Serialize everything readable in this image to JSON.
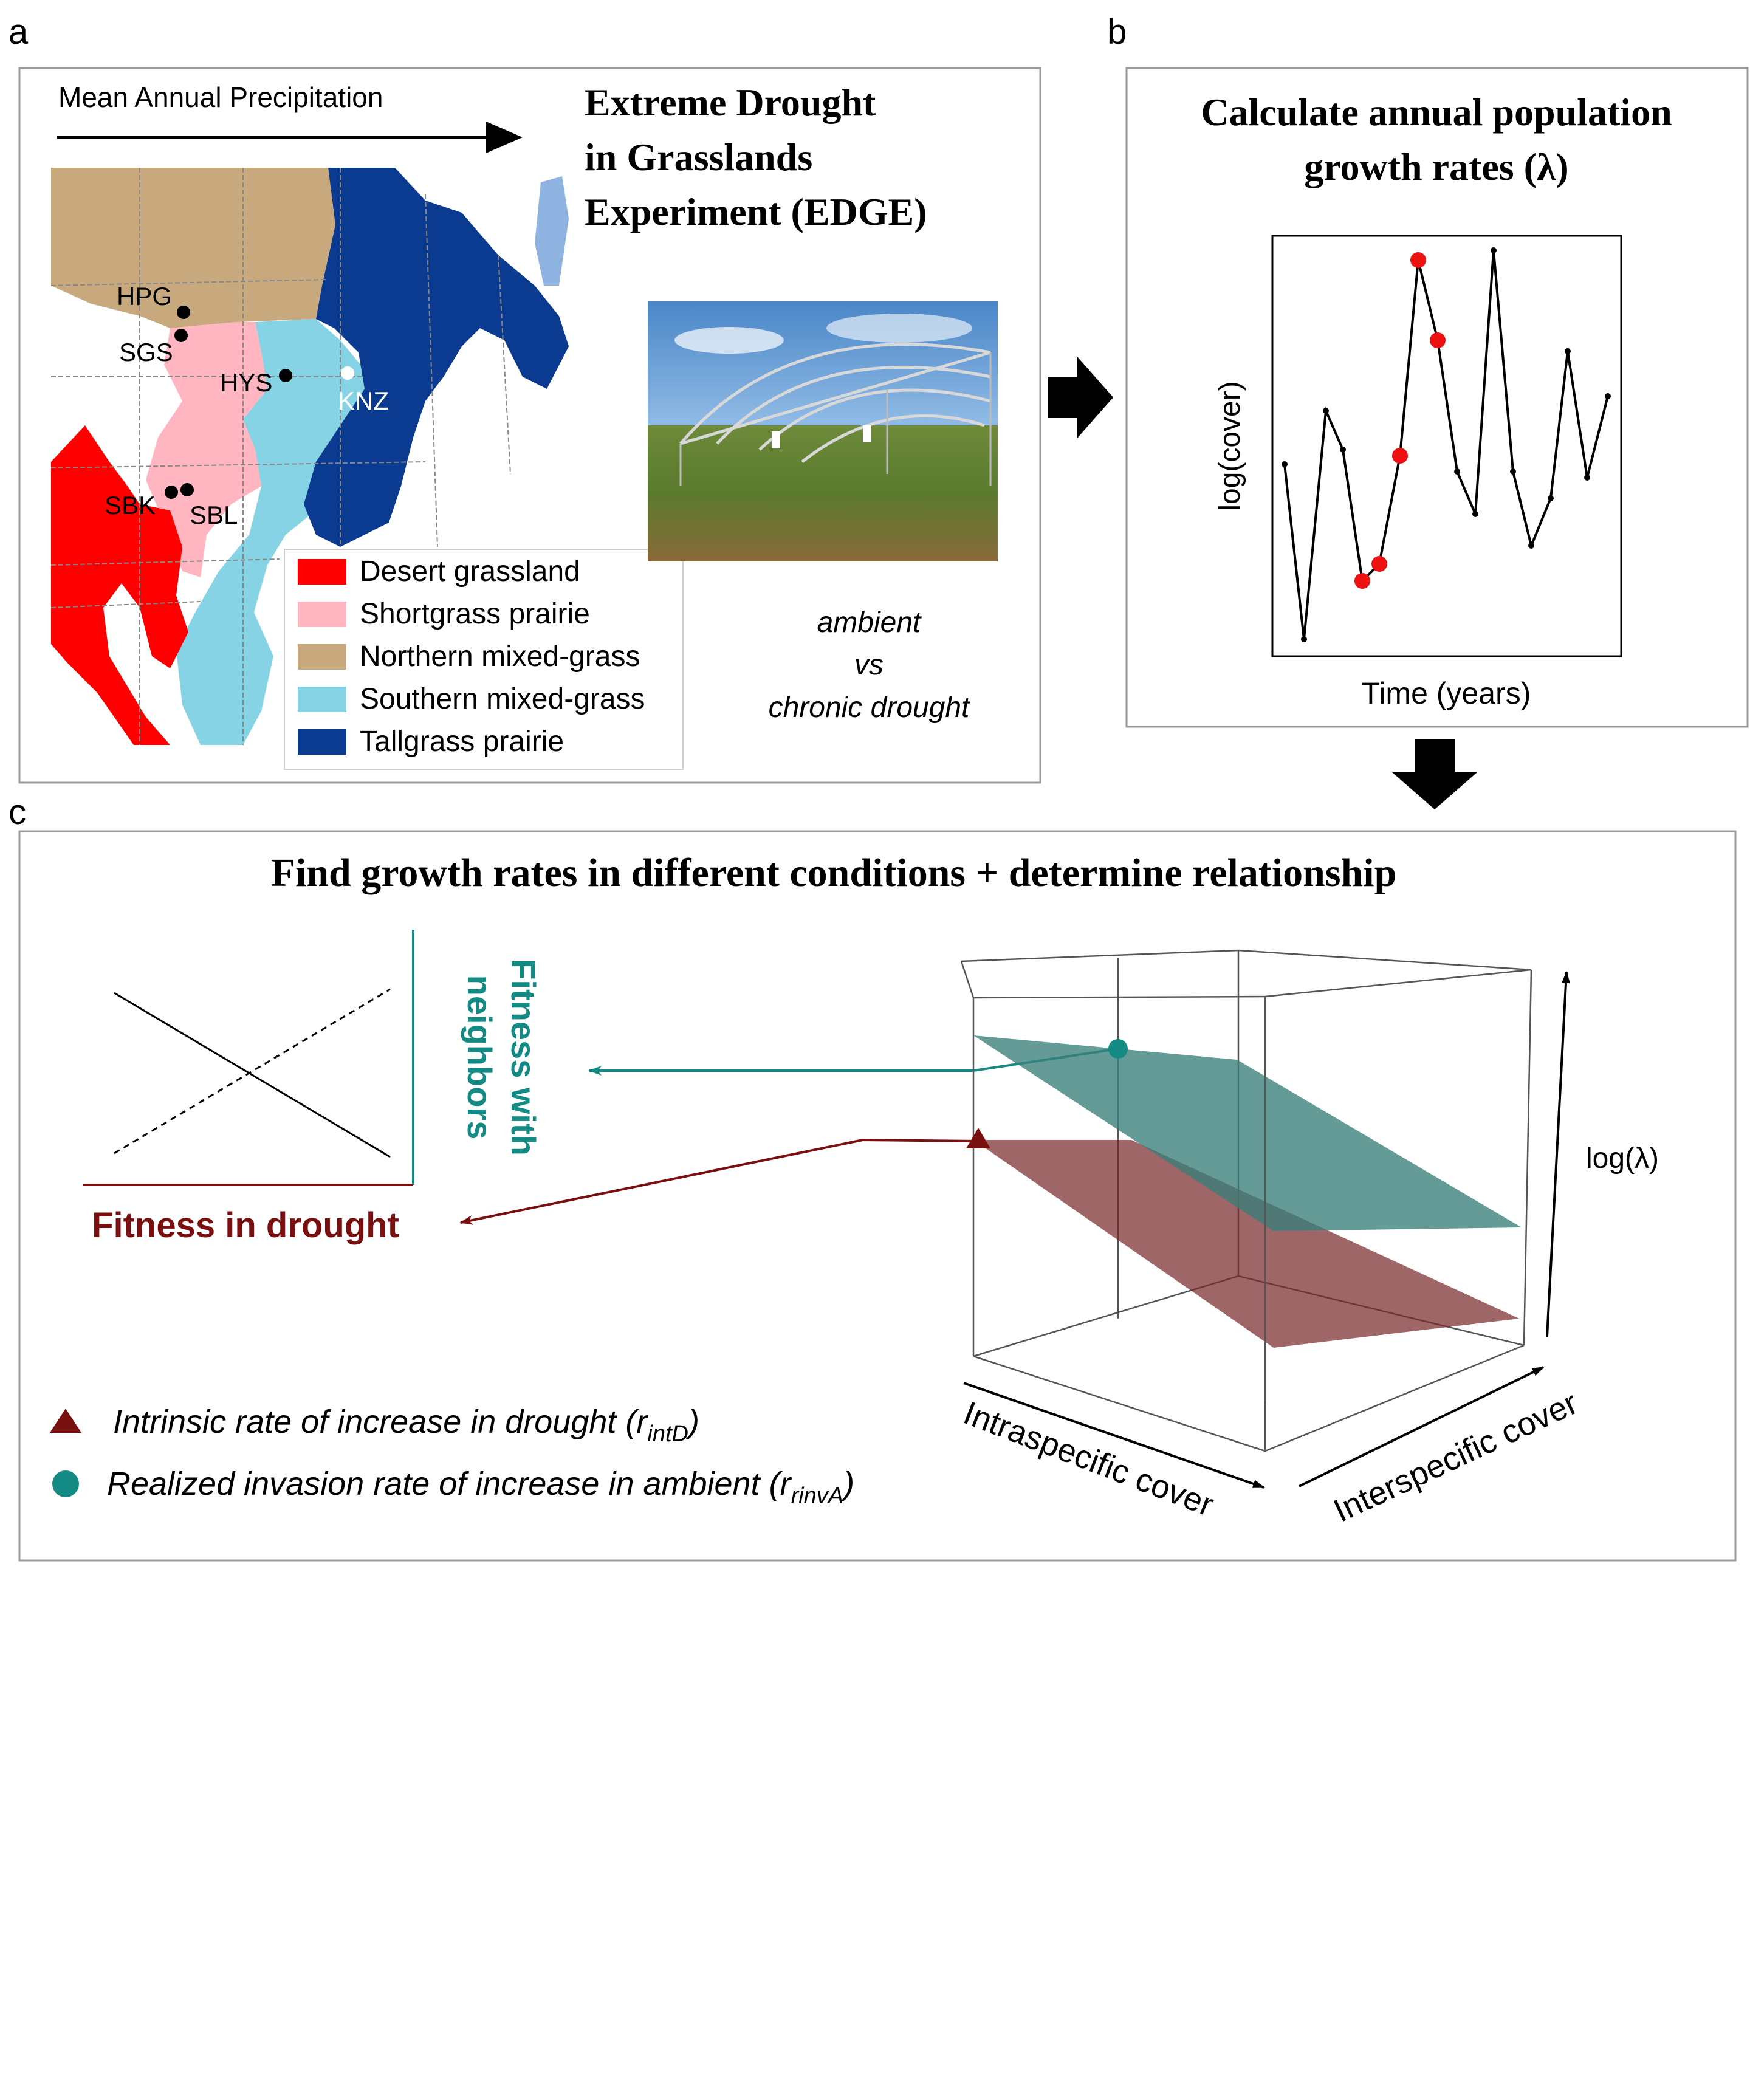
{
  "panel_a": {
    "letter": "a",
    "precip_label": "Mean Annual Precipitation",
    "title_lines": [
      "Extreme Drought",
      "in Grasslands",
      "Experiment (EDGE)"
    ],
    "sites": [
      "HPG",
      "SGS",
      "HYS",
      "KNZ",
      "SBK",
      "SBL"
    ],
    "legend": [
      {
        "label": "Desert grassland",
        "color": "#ff0000"
      },
      {
        "label": "Shortgrass prairie",
        "color": "#ffb6c1"
      },
      {
        "label": "Northern mixed-grass",
        "color": "#c8a97e"
      },
      {
        "label": "Southern mixed-grass",
        "color": "#87d3e6"
      },
      {
        "label": "Tallgrass prairie",
        "color": "#0a3b91"
      }
    ],
    "treatment": [
      "ambient",
      "vs",
      "chronic drought"
    ]
  },
  "panel_b": {
    "letter": "b",
    "title_lines": [
      "Calculate annual population",
      "growth rates (λ)"
    ],
    "ylabel": "log(cover)",
    "xlabel": "Time (years)"
  },
  "panel_c": {
    "letter": "c",
    "title": "Find growth rates in different conditions + determine relationship",
    "ylabel_line1": "Fitness with",
    "ylabel_line2": "neighbors",
    "xlabel": "Fitness in drought",
    "z_axis": "log(λ)",
    "x_axis": "Intraspecific cover",
    "y_axis": "Interspecific cover",
    "legend": [
      {
        "marker": "triangle",
        "text": "Intrinsic rate of increase in drought (r",
        "sub": "intD",
        "close": ")"
      },
      {
        "marker": "circle",
        "text": "Realized invasion rate of increase in ambient (r",
        "sub": "rinvA",
        "close": ")"
      }
    ]
  },
  "colors": {
    "teal": "#138a84",
    "teal_plane": "#3a7f7a",
    "maroon": "#7a0f10",
    "maroon_plane": "#7a2b2e",
    "red_point": "#ee1111",
    "frame": "#999999"
  }
}
